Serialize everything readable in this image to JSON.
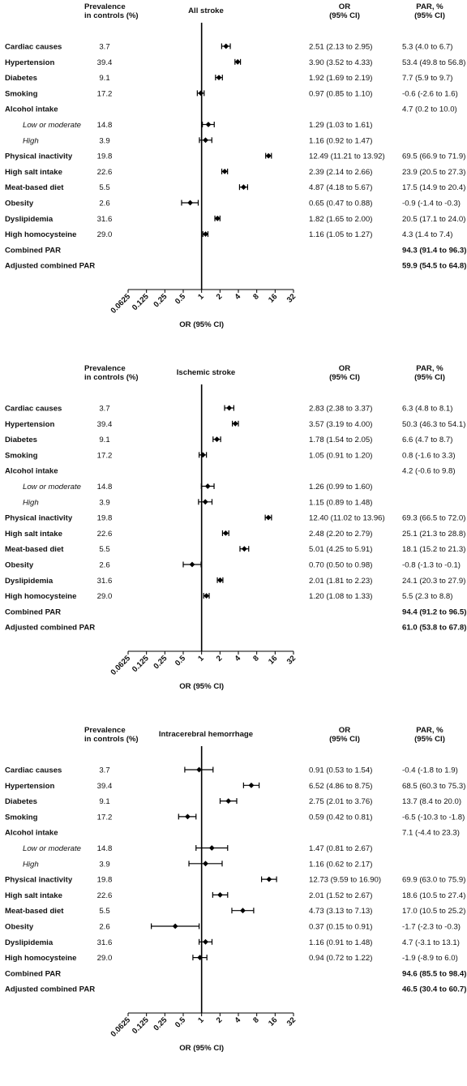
{
  "headers": {
    "prevalence": [
      "Prevalence",
      "in controls (%)"
    ],
    "or": [
      "OR",
      "(95% CI)"
    ],
    "par": [
      "PAR, %",
      "(95% CI)"
    ]
  },
  "axis": {
    "scale": "log2",
    "ticks": [
      "0.0625",
      "0.125",
      "0.25",
      "0.5",
      "1",
      "2",
      "4",
      "8",
      "16",
      "32"
    ],
    "tick_values": [
      0.0625,
      0.125,
      0.25,
      0.5,
      1,
      2,
      4,
      8,
      16,
      32
    ],
    "xlabel": "OR (95% CI)",
    "reference_line": 1
  },
  "chart_data": [
    {
      "type": "forest",
      "title": "All stroke",
      "rows": [
        {
          "label": "Cardiac causes",
          "style": "bold",
          "prev": "3.7",
          "or_text": "2.51 (2.13 to 2.95)",
          "par_text": "5.3 (4.0 to 6.7)",
          "or": 2.51,
          "lo": 2.13,
          "hi": 2.95
        },
        {
          "label": "Hypertension",
          "style": "bold",
          "prev": "39.4",
          "or_text": "3.90 (3.52 to 4.33)",
          "par_text": "53.4 (49.8 to 56.8)",
          "or": 3.9,
          "lo": 3.52,
          "hi": 4.33
        },
        {
          "label": "Diabetes",
          "style": "bold",
          "prev": "9.1",
          "or_text": "1.92 (1.69 to 2.19)",
          "par_text": "7.7 (5.9 to 9.7)",
          "or": 1.92,
          "lo": 1.69,
          "hi": 2.19
        },
        {
          "label": "Smoking",
          "style": "bold",
          "prev": "17.2",
          "or_text": "0.97 (0.85 to 1.10)",
          "par_text": "-0.6 (-2.6 to 1.6)",
          "or": 0.97,
          "lo": 0.85,
          "hi": 1.1
        },
        {
          "label": "Alcohol intake",
          "style": "bold",
          "prev": "",
          "or_text": "",
          "par_text": "4.7 (0.2 to 10.0)"
        },
        {
          "label": "Low or moderate",
          "style": "italic",
          "prev": "14.8",
          "or_text": "1.29 (1.03 to 1.61)",
          "par_text": "",
          "or": 1.29,
          "lo": 1.03,
          "hi": 1.61
        },
        {
          "label": "High",
          "style": "italic",
          "prev": "3.9",
          "or_text": "1.16 (0.92 to 1.47)",
          "par_text": "",
          "or": 1.16,
          "lo": 0.92,
          "hi": 1.47
        },
        {
          "label": "Physical inactivity",
          "style": "bold",
          "prev": "19.8",
          "or_text": "12.49 (11.21 to 13.92)",
          "par_text": "69.5 (66.9 to 71.9)",
          "or": 12.49,
          "lo": 11.21,
          "hi": 13.92
        },
        {
          "label": "High salt intake",
          "style": "bold",
          "prev": "22.6",
          "or_text": "2.39 (2.14 to 2.66)",
          "par_text": "23.9 (20.5 to 27.3)",
          "or": 2.39,
          "lo": 2.14,
          "hi": 2.66
        },
        {
          "label": "Meat-based diet",
          "style": "bold",
          "prev": "5.5",
          "or_text": "4.87 (4.18 to 5.67)",
          "par_text": "17.5 (14.9 to 20.4)",
          "or": 4.87,
          "lo": 4.18,
          "hi": 5.67
        },
        {
          "label": "Obesity",
          "style": "bold",
          "prev": "2.6",
          "or_text": "0.65 (0.47 to 0.88)",
          "par_text": "-0.9 (-1.4 to -0.3)",
          "or": 0.65,
          "lo": 0.47,
          "hi": 0.88
        },
        {
          "label": "Dyslipidemia",
          "style": "bold",
          "prev": "31.6",
          "or_text": "1.82 (1.65 to 2.00)",
          "par_text": "20.5 (17.1 to 24.0)",
          "or": 1.82,
          "lo": 1.65,
          "hi": 2.0
        },
        {
          "label": "High homocysteine",
          "style": "bold",
          "prev": "29.0",
          "or_text": "1.16 (1.05 to 1.27)",
          "par_text": "4.3 (1.4 to 7.4)",
          "or": 1.16,
          "lo": 1.05,
          "hi": 1.27
        },
        {
          "label": "Combined PAR",
          "style": "bold",
          "prev": "",
          "or_text": "",
          "par_text": "94.3 (91.4 to 96.3)",
          "par_bold": true
        },
        {
          "label": "Adjusted combined PAR",
          "style": "bold",
          "prev": "",
          "or_text": "",
          "par_text": "59.9 (54.5 to 64.8)",
          "par_bold": true
        }
      ]
    },
    {
      "type": "forest",
      "title": "Ischemic stroke",
      "rows": [
        {
          "label": "Cardiac causes",
          "style": "bold",
          "prev": "3.7",
          "or_text": "2.83 (2.38 to 3.37)",
          "par_text": "6.3 (4.8 to 8.1)",
          "or": 2.83,
          "lo": 2.38,
          "hi": 3.37
        },
        {
          "label": "Hypertension",
          "style": "bold",
          "prev": "39.4",
          "or_text": "3.57 (3.19 to 4.00)",
          "par_text": "50.3 (46.3 to 54.1)",
          "or": 3.57,
          "lo": 3.19,
          "hi": 4.0
        },
        {
          "label": "Diabetes",
          "style": "bold",
          "prev": "9.1",
          "or_text": "1.78 (1.54 to 2.05)",
          "par_text": "6.6 (4.7 to 8.7)",
          "or": 1.78,
          "lo": 1.54,
          "hi": 2.05
        },
        {
          "label": "Smoking",
          "style": "bold",
          "prev": "17.2",
          "or_text": "1.05 (0.91 to 1.20)",
          "par_text": "0.8 (-1.6 to 3.3)",
          "or": 1.05,
          "lo": 0.91,
          "hi": 1.2
        },
        {
          "label": "Alcohol intake",
          "style": "bold",
          "prev": "",
          "or_text": "",
          "par_text": "4.2 (-0.6 to 9.8)"
        },
        {
          "label": "Low or moderate",
          "style": "italic",
          "prev": "14.8",
          "or_text": "1.26 (0.99 to 1.60)",
          "par_text": "",
          "or": 1.26,
          "lo": 0.99,
          "hi": 1.6
        },
        {
          "label": "High",
          "style": "italic",
          "prev": "3.9",
          "or_text": "1.15 (0.89 to 1.48)",
          "par_text": "",
          "or": 1.15,
          "lo": 0.89,
          "hi": 1.48
        },
        {
          "label": "Physical inactivity",
          "style": "bold",
          "prev": "19.8",
          "or_text": "12.40 (11.02 to 13.96)",
          "par_text": "69.3 (66.5 to 72.0)",
          "or": 12.4,
          "lo": 11.02,
          "hi": 13.96
        },
        {
          "label": "High salt intake",
          "style": "bold",
          "prev": "22.6",
          "or_text": "2.48 (2.20 to 2.79)",
          "par_text": "25.1 (21.3 to 28.8)",
          "or": 2.48,
          "lo": 2.2,
          "hi": 2.79
        },
        {
          "label": "Meat-based diet",
          "style": "bold",
          "prev": "5.5",
          "or_text": "5.01 (4.25 to 5.91)",
          "par_text": "18.1 (15.2 to 21.3)",
          "or": 5.01,
          "lo": 4.25,
          "hi": 5.91
        },
        {
          "label": "Obesity",
          "style": "bold",
          "prev": "2.6",
          "or_text": "0.70 (0.50 to 0.98)",
          "par_text": "-0.8 (-1.3 to -0.1)",
          "or": 0.7,
          "lo": 0.5,
          "hi": 0.98
        },
        {
          "label": "Dyslipidemia",
          "style": "bold",
          "prev": "31.6",
          "or_text": "2.01 (1.81 to 2.23)",
          "par_text": "24.1 (20.3 to 27.9)",
          "or": 2.01,
          "lo": 1.81,
          "hi": 2.23
        },
        {
          "label": "High homocysteine",
          "style": "bold",
          "prev": "29.0",
          "or_text": "1.20 (1.08 to 1.33)",
          "par_text": "5.5 (2.3 to 8.8)",
          "or": 1.2,
          "lo": 1.08,
          "hi": 1.33
        },
        {
          "label": "Combined PAR",
          "style": "bold",
          "prev": "",
          "or_text": "",
          "par_text": "94.4 (91.2 to 96.5)",
          "par_bold": true
        },
        {
          "label": "Adjusted combined PAR",
          "style": "bold",
          "prev": "",
          "or_text": "",
          "par_text": "61.0 (53.8 to 67.8)",
          "par_bold": true
        }
      ]
    },
    {
      "type": "forest",
      "title": "Intracerebral hemorrhage",
      "rows": [
        {
          "label": "Cardiac causes",
          "style": "bold",
          "prev": "3.7",
          "or_text": "0.91 (0.53 to 1.54)",
          "par_text": "-0.4 (-1.8 to 1.9)",
          "or": 0.91,
          "lo": 0.53,
          "hi": 1.54
        },
        {
          "label": "Hypertension",
          "style": "bold",
          "prev": "39.4",
          "or_text": "6.52 (4.86 to 8.75)",
          "par_text": "68.5 (60.3 to 75.3)",
          "or": 6.52,
          "lo": 4.86,
          "hi": 8.75
        },
        {
          "label": "Diabetes",
          "style": "bold",
          "prev": "9.1",
          "or_text": "2.75 (2.01 to 3.76)",
          "par_text": "13.7 (8.4 to 20.0)",
          "or": 2.75,
          "lo": 2.01,
          "hi": 3.76
        },
        {
          "label": "Smoking",
          "style": "bold",
          "prev": "17.2",
          "or_text": "0.59 (0.42 to 0.81)",
          "par_text": "-6.5 (-10.3 to -1.8)",
          "or": 0.59,
          "lo": 0.42,
          "hi": 0.81
        },
        {
          "label": "Alcohol intake",
          "style": "bold",
          "prev": "",
          "or_text": "",
          "par_text": "7.1 (-4.4 to 23.3)"
        },
        {
          "label": "Low or moderate",
          "style": "italic",
          "prev": "14.8",
          "or_text": "1.47 (0.81 to 2.67)",
          "par_text": "",
          "or": 1.47,
          "lo": 0.81,
          "hi": 2.67
        },
        {
          "label": "High",
          "style": "italic",
          "prev": "3.9",
          "or_text": "1.16 (0.62 to 2.17)",
          "par_text": "",
          "or": 1.16,
          "lo": 0.62,
          "hi": 2.17
        },
        {
          "label": "Physical inactivity",
          "style": "bold",
          "prev": "19.8",
          "or_text": "12.73 (9.59 to 16.90)",
          "par_text": "69.9 (63.0 to 75.9)",
          "or": 12.73,
          "lo": 9.59,
          "hi": 16.9
        },
        {
          "label": "High salt intake",
          "style": "bold",
          "prev": "22.6",
          "or_text": "2.01 (1.52 to 2.67)",
          "par_text": "18.6 (10.5 to 27.4)",
          "or": 2.01,
          "lo": 1.52,
          "hi": 2.67
        },
        {
          "label": "Meat-based diet",
          "style": "bold",
          "prev": "5.5",
          "or_text": "4.73 (3.13 to 7.13)",
          "par_text": "17.0 (10.5 to 25.2)",
          "or": 4.73,
          "lo": 3.13,
          "hi": 7.13
        },
        {
          "label": "Obesity",
          "style": "bold",
          "prev": "2.6",
          "or_text": "0.37 (0.15 to 0.91)",
          "par_text": "-1.7 (-2.3 to -0.3)",
          "or": 0.37,
          "lo": 0.15,
          "hi": 0.91
        },
        {
          "label": "Dyslipidemia",
          "style": "bold",
          "prev": "31.6",
          "or_text": "1.16 (0.91 to 1.48)",
          "par_text": "4.7 (-3.1 to 13.1)",
          "or": 1.16,
          "lo": 0.91,
          "hi": 1.48
        },
        {
          "label": "High homocysteine",
          "style": "bold",
          "prev": "29.0",
          "or_text": "0.94 (0.72 to 1.22)",
          "par_text": "-1.9 (-8.9 to 6.0)",
          "or": 0.94,
          "lo": 0.72,
          "hi": 1.22
        },
        {
          "label": "Combined PAR",
          "style": "bold",
          "prev": "",
          "or_text": "",
          "par_text": "94.6 (85.5 to 98.4)",
          "par_bold": true
        },
        {
          "label": "Adjusted combined PAR",
          "style": "bold",
          "prev": "",
          "or_text": "",
          "par_text": "46.5 (30.4 to 60.7)",
          "par_bold": true
        }
      ]
    }
  ]
}
